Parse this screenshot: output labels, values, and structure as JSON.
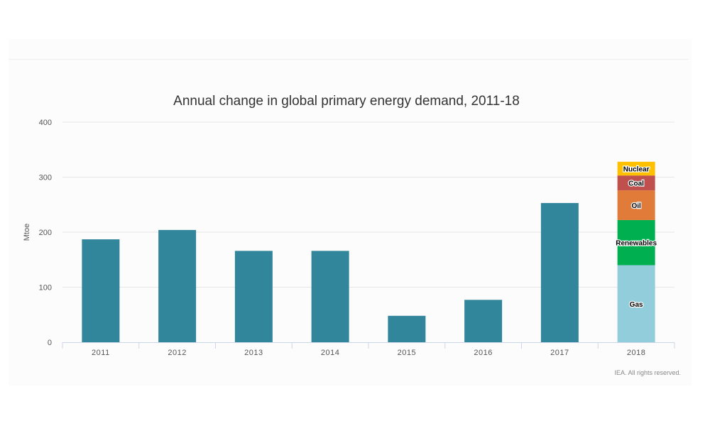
{
  "chart_data": {
    "type": "bar",
    "title": "Annual change in global primary energy demand, 2011-18",
    "xlabel": "",
    "ylabel": "Mtoe",
    "ylim": [
      0,
      400
    ],
    "yticks": [
      0,
      100,
      200,
      300,
      400
    ],
    "grid": true,
    "credit": "IEA. All rights reserved.",
    "bar_color": "#31869b",
    "categories": [
      "2011",
      "2012",
      "2013",
      "2014",
      "2015",
      "2016",
      "2017",
      "2018"
    ],
    "values": [
      187,
      204,
      166,
      166,
      48,
      77,
      253,
      null
    ],
    "stacked_bar": {
      "category": "2018",
      "segments": [
        {
          "name": "Gas",
          "value": 140,
          "color": "#92cddc"
        },
        {
          "name": "Renewables",
          "value": 82,
          "color": "#00b050"
        },
        {
          "name": "Oil",
          "value": 54,
          "color": "#e07b39"
        },
        {
          "name": "Coal",
          "value": 27,
          "color": "#c0504d"
        },
        {
          "name": "Nuclear",
          "value": 25,
          "color": "#ffc000"
        }
      ]
    }
  }
}
